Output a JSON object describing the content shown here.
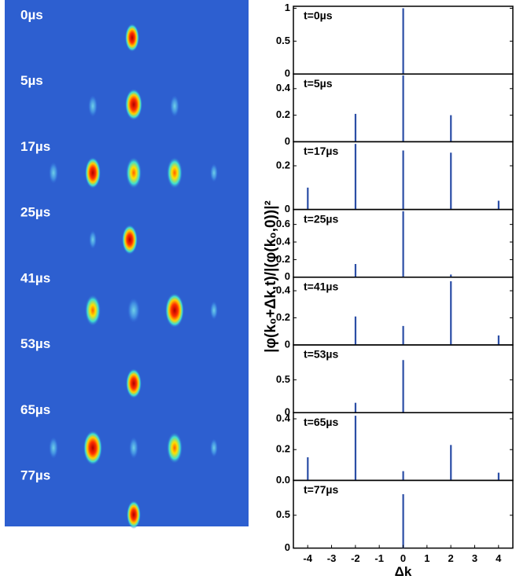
{
  "images": [
    "0µs",
    "5µs",
    "17µs",
    "25µs",
    "41µs",
    "53µs",
    "65µs",
    "77µs"
  ],
  "ylabel": "|φ(k₀+Δk,t)/|(φ(k₀,0))|²",
  "chart_data": [
    {
      "type": "bar",
      "annotation": "t=0µs",
      "x": [
        0
      ],
      "values": [
        1.0
      ],
      "color": "#2b4ea6",
      "xlim": [
        -4.6,
        4.6
      ],
      "ylim": [
        0,
        1.03
      ],
      "yticks": [
        0,
        0.5,
        1
      ]
    },
    {
      "type": "bar",
      "annotation": "t=5µs",
      "x": [
        -2,
        0,
        2
      ],
      "values": [
        0.21,
        0.5,
        0.2
      ],
      "color": "#2b4ea6",
      "xlim": [
        -4.6,
        4.6
      ],
      "ylim": [
        0,
        0.51
      ],
      "yticks": [
        0,
        0.2,
        0.4
      ]
    },
    {
      "type": "bar",
      "annotation": "t=17µs",
      "x": [
        -4,
        -2,
        0,
        2,
        4
      ],
      "values": [
        0.1,
        0.3,
        0.27,
        0.26,
        0.04
      ],
      "color": "#2b4ea6",
      "xlim": [
        -4.6,
        4.6
      ],
      "ylim": [
        0,
        0.31
      ],
      "yticks": [
        0,
        0.2
      ]
    },
    {
      "type": "bar",
      "annotation": "t=25µs",
      "x": [
        -2,
        0,
        2
      ],
      "values": [
        0.15,
        0.75,
        0.03
      ],
      "color": "#2b4ea6",
      "xlim": [
        -4.6,
        4.6
      ],
      "ylim": [
        0,
        0.77
      ],
      "yticks": [
        0,
        0.2,
        0.4,
        0.6
      ]
    },
    {
      "type": "bar",
      "annotation": "t=41µs",
      "x": [
        -2,
        0,
        2,
        4
      ],
      "values": [
        0.21,
        0.14,
        0.47,
        0.07
      ],
      "color": "#2b4ea6",
      "xlim": [
        -4.6,
        4.6
      ],
      "ylim": [
        0,
        0.5
      ],
      "yticks": [
        0,
        0.2,
        0.4
      ]
    },
    {
      "type": "bar",
      "annotation": "t=53µs",
      "x": [
        -2,
        0
      ],
      "values": [
        0.15,
        0.8
      ],
      "color": "#2b4ea6",
      "xlim": [
        -4.6,
        4.6
      ],
      "ylim": [
        0,
        1.03
      ],
      "yticks": [
        0,
        0.5
      ]
    },
    {
      "type": "bar",
      "annotation": "t=65µs",
      "x": [
        -4,
        -2,
        0,
        2,
        4
      ],
      "values": [
        0.15,
        0.42,
        0.06,
        0.23,
        0.05
      ],
      "color": "#2b4ea6",
      "xlim": [
        -4.6,
        4.6
      ],
      "ylim": [
        0,
        0.44
      ],
      "yticks": [
        {
          "value": 0,
          "label": "0.0"
        },
        0.2,
        0.4
      ]
    },
    {
      "type": "bar",
      "annotation": "t=77µs",
      "x": [
        0
      ],
      "values": [
        0.82
      ],
      "color": "#2b4ea6",
      "xlim": [
        -4.6,
        4.6
      ],
      "ylim": [
        0,
        1.03
      ],
      "yticks": [
        0,
        0.5
      ],
      "xticks": [
        -4,
        -3,
        -2,
        -1,
        0,
        1,
        2,
        3,
        4
      ],
      "xlabel": "Δk"
    }
  ]
}
